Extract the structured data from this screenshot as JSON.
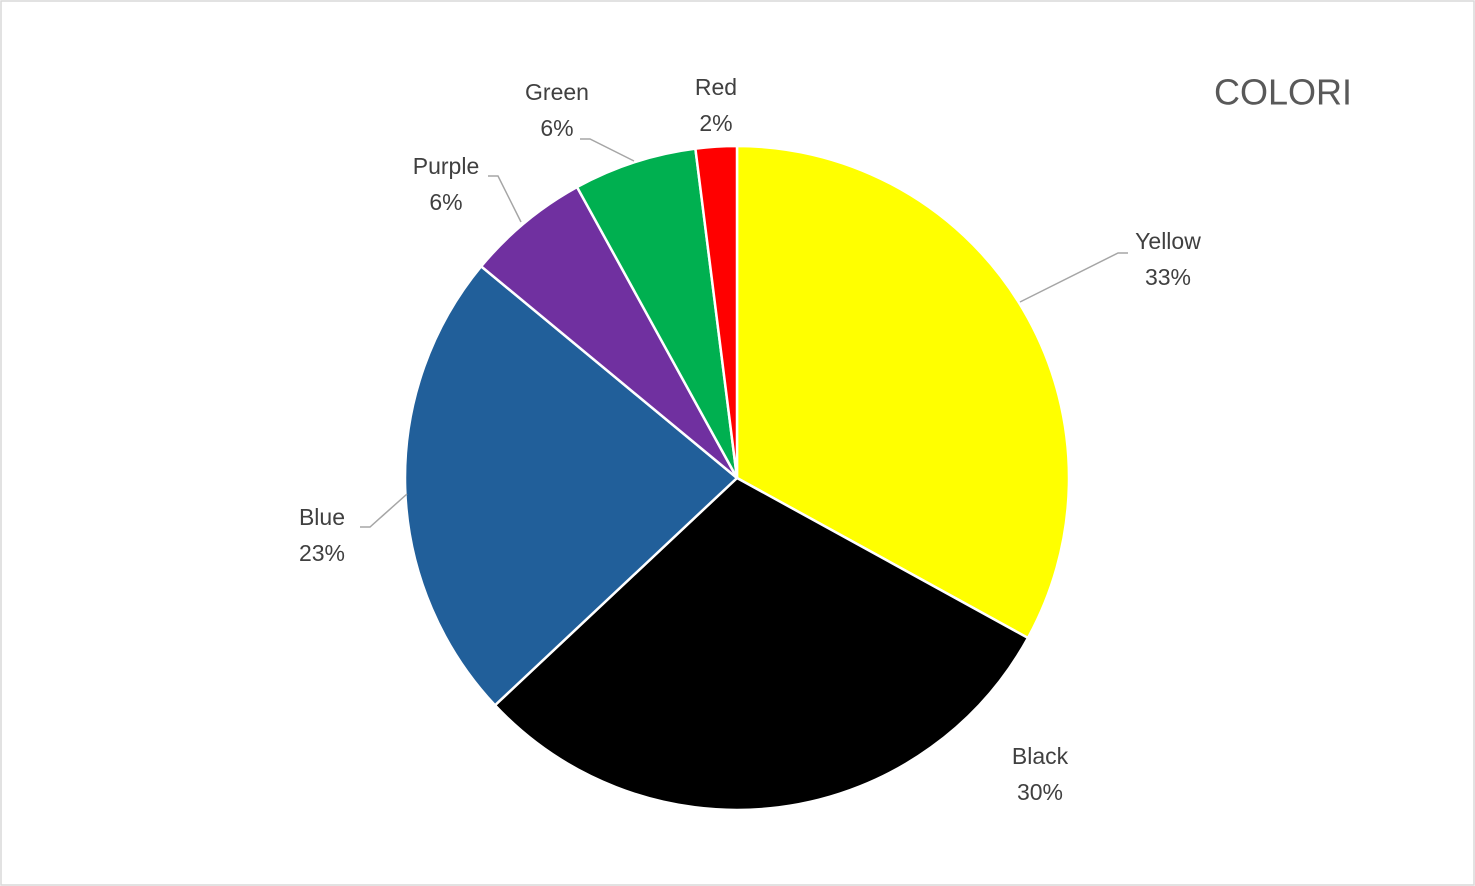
{
  "chart_data": {
    "type": "pie",
    "title": "COLORI",
    "categories": [
      "Yellow",
      "Black",
      "Blue",
      "Purple",
      "Green",
      "Red"
    ],
    "values": [
      33,
      30,
      23,
      6,
      6,
      2
    ],
    "value_labels": [
      "33%",
      "30%",
      "23%",
      "6%",
      "6%",
      "2%"
    ],
    "colors": [
      "#ffff00",
      "#000000",
      "#215f9a",
      "#7030a0",
      "#00b050",
      "#ff0000"
    ]
  }
}
